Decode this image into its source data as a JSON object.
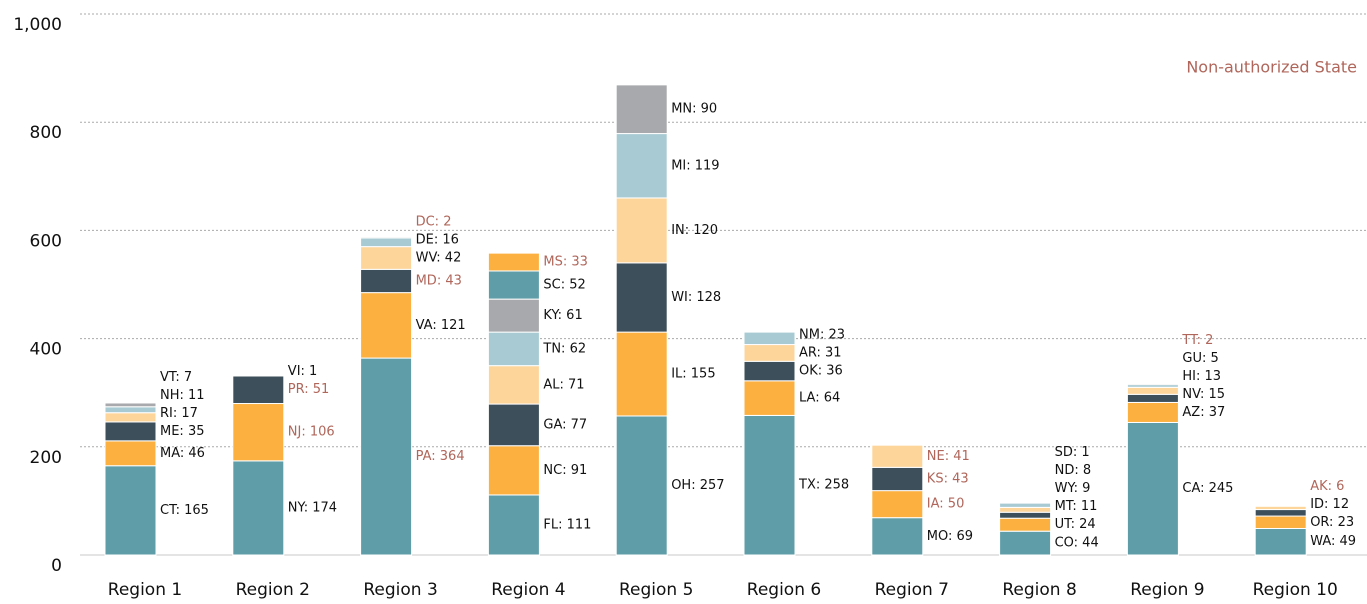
{
  "chart_data": {
    "type": "stacked_bar",
    "annotation": "Non-authorized State",
    "annotation_color": "#b0665a",
    "label_color": "#111111",
    "colors": [
      "#5f9ea8",
      "#fbb040",
      "#3d4f5a",
      "#fdd59b",
      "#a8cbd3",
      "#a7a9ac"
    ],
    "ylim": [
      0,
      1000
    ],
    "yticks": [
      0,
      200,
      400,
      600,
      800,
      {
        "value": 1000,
        "label": "1,000"
      }
    ],
    "grid": true,
    "categories": [
      "Region 1",
      "Region 2",
      "Region 3",
      "Region 4",
      "Region 5",
      "Region 6",
      "Region 7",
      "Region 8",
      "Region 9",
      "Region 10"
    ],
    "stacks": [
      {
        "segments": [
          {
            "value": 165,
            "value_label": "CT: 165"
          },
          {
            "value": 46,
            "value_label": "MA: 46"
          },
          {
            "value": 35,
            "value_label": "ME: 35"
          },
          {
            "value": 17,
            "value_label": "RI: 17"
          },
          {
            "value": 11,
            "value_label": "NH: 11"
          },
          {
            "value": 7,
            "value_label": "VT: 7"
          }
        ]
      },
      {
        "segments": [
          {
            "value": 174,
            "value_label": "NY: 174"
          },
          {
            "value": 106,
            "value_label": "NJ: 106",
            "non_authorized": true
          },
          {
            "value": 51,
            "value_label": "PR: 51",
            "non_authorized": true
          },
          {
            "value": 1,
            "value_label": "VI: 1"
          }
        ]
      },
      {
        "segments": [
          {
            "value": 364,
            "value_label": "PA: 364",
            "non_authorized": true
          },
          {
            "value": 121,
            "value_label": "VA: 121"
          },
          {
            "value": 43,
            "value_label": "MD: 43",
            "non_authorized": true
          },
          {
            "value": 42,
            "value_label": "WV: 42"
          },
          {
            "value": 16,
            "value_label": "DE: 16"
          },
          {
            "value": 2,
            "value_label": "DC: 2",
            "non_authorized": true
          }
        ]
      },
      {
        "segments": [
          {
            "value": 111,
            "value_label": "FL: 111"
          },
          {
            "value": 91,
            "value_label": "NC: 91"
          },
          {
            "value": 77,
            "value_label": "GA: 77"
          },
          {
            "value": 71,
            "value_label": "AL: 71"
          },
          {
            "value": 62,
            "value_label": "TN: 62"
          },
          {
            "value": 61,
            "value_label": "KY: 61"
          },
          {
            "value": 52,
            "value_label": "SC: 52"
          },
          {
            "value": 33,
            "value_label": "MS: 33",
            "non_authorized": true
          }
        ]
      },
      {
        "segments": [
          {
            "value": 257,
            "value_label": "OH: 257"
          },
          {
            "value": 155,
            "value_label": "IL: 155"
          },
          {
            "value": 128,
            "value_label": "WI: 128"
          },
          {
            "value": 120,
            "value_label": "IN: 120"
          },
          {
            "value": 119,
            "value_label": "MI: 119"
          },
          {
            "value": 90,
            "value_label": "MN: 90"
          }
        ]
      },
      {
        "segments": [
          {
            "value": 258,
            "value_label": "TX: 258"
          },
          {
            "value": 64,
            "value_label": "LA: 64"
          },
          {
            "value": 36,
            "value_label": "OK: 36"
          },
          {
            "value": 31,
            "value_label": "AR: 31"
          },
          {
            "value": 23,
            "value_label": "NM: 23"
          }
        ]
      },
      {
        "segments": [
          {
            "value": 69,
            "value_label": "MO: 69"
          },
          {
            "value": 50,
            "value_label": "IA: 50",
            "non_authorized": true
          },
          {
            "value": 43,
            "value_label": "KS: 43",
            "non_authorized": true
          },
          {
            "value": 41,
            "value_label": "NE: 41",
            "non_authorized": true
          }
        ]
      },
      {
        "segments": [
          {
            "value": 44,
            "value_label": "CO: 44"
          },
          {
            "value": 24,
            "value_label": "UT: 24"
          },
          {
            "value": 11,
            "value_label": "MT: 11"
          },
          {
            "value": 9,
            "value_label": "WY: 9"
          },
          {
            "value": 8,
            "value_label": "ND: 8"
          },
          {
            "value": 1,
            "value_label": "SD: 1"
          }
        ]
      },
      {
        "segments": [
          {
            "value": 245,
            "value_label": "CA: 245"
          },
          {
            "value": 37,
            "value_label": "AZ: 37"
          },
          {
            "value": 15,
            "value_label": "NV: 15"
          },
          {
            "value": 13,
            "value_label": "HI: 13"
          },
          {
            "value": 5,
            "value_label": "GU: 5"
          },
          {
            "value": 2,
            "value_label": "TT: 2",
            "non_authorized": true
          }
        ]
      },
      {
        "segments": [
          {
            "value": 49,
            "value_label": "WA: 49"
          },
          {
            "value": 23,
            "value_label": "OR: 23"
          },
          {
            "value": 12,
            "value_label": "ID: 12"
          },
          {
            "value": 6,
            "value_label": "AK: 6",
            "non_authorized": true
          }
        ]
      }
    ]
  }
}
